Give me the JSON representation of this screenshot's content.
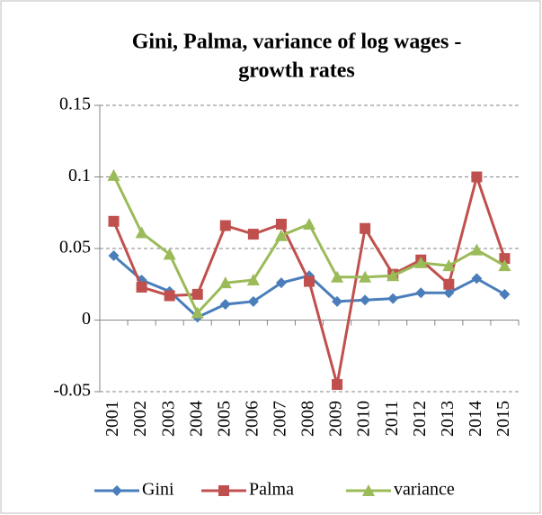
{
  "chart_data": {
    "type": "line",
    "title": "Gini, Palma, variance of log wages -",
    "subtitle": "growth rates",
    "categories": [
      "2001",
      "2002",
      "2003",
      "2004",
      "2005",
      "2006",
      "2007",
      "2008",
      "2009",
      "2010",
      "2011",
      "2012",
      "2013",
      "2014",
      "2015"
    ],
    "series": [
      {
        "name": "Gini",
        "color": "#4a7ebb",
        "marker": "diamond",
        "values": [
          0.045,
          0.028,
          0.02,
          0.002,
          0.011,
          0.013,
          0.026,
          0.031,
          0.013,
          0.014,
          0.015,
          0.019,
          0.019,
          0.029,
          0.018
        ]
      },
      {
        "name": "Palma",
        "color": "#c0504d",
        "marker": "square",
        "values": [
          0.069,
          0.023,
          0.017,
          0.018,
          0.066,
          0.06,
          0.067,
          0.027,
          -0.045,
          0.064,
          0.032,
          0.042,
          0.025,
          0.1,
          0.043
        ]
      },
      {
        "name": "variance",
        "color": "#9bbb59",
        "marker": "triangle",
        "values": [
          0.101,
          0.061,
          0.046,
          0.005,
          0.026,
          0.028,
          0.059,
          0.067,
          0.03,
          0.03,
          0.031,
          0.04,
          0.038,
          0.049,
          0.038
        ]
      }
    ],
    "ylim": [
      -0.05,
      0.15
    ],
    "yticks": [
      -0.05,
      0,
      0.05,
      0.1,
      0.15
    ],
    "grid": true,
    "legend": "bottom"
  }
}
